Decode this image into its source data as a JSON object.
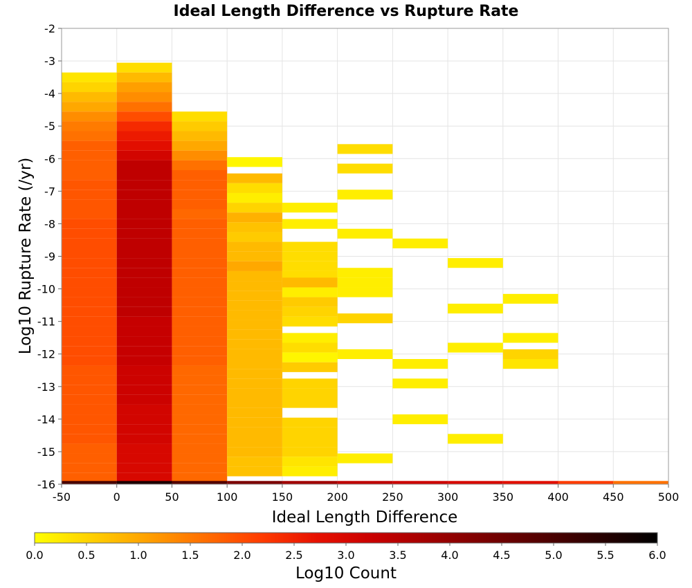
{
  "chart_data": {
    "type": "heatmap",
    "title": "Ideal Length Difference vs Rupture Rate",
    "xlabel": "Ideal Length Difference",
    "ylabel": "Log10 Rupture Rate (/yr)",
    "xlim": [
      -50,
      500
    ],
    "ylim": [
      -16,
      -2
    ],
    "xticks": [
      "-50",
      "0",
      "50",
      "100",
      "150",
      "200",
      "250",
      "300",
      "350",
      "400",
      "450",
      "500"
    ],
    "yticks": [
      "-2",
      "-3",
      "-4",
      "-5",
      "-6",
      "-7",
      "-8",
      "-9",
      "-10",
      "-11",
      "-12",
      "-13",
      "-14",
      "-15",
      "-16"
    ],
    "grid": true,
    "colorbar": {
      "label": "Log10 Count",
      "range": [
        0,
        6
      ],
      "ticks": [
        "0.0",
        "0.5",
        "1.0",
        "1.5",
        "2.0",
        "2.5",
        "3.0",
        "3.5",
        "4.0",
        "4.5",
        "5.0",
        "5.5",
        "6.0"
      ],
      "stops": [
        "#ffff00",
        "#ffd000",
        "#ffa000",
        "#ff6e00",
        "#ff3c00",
        "#e61000",
        "#c80000",
        "#a00000",
        "#780000",
        "#500000",
        "#280000",
        "#000000"
      ]
    },
    "cell_height": 0.29,
    "columns": [
      {
        "x0": -50,
        "x1": 0,
        "cells": [
          {
            "y": -3.5,
            "v": 0.3
          },
          {
            "y": -3.8,
            "v": 0.5
          },
          {
            "y": -4.1,
            "v": 0.8
          },
          {
            "y": -4.4,
            "v": 1.0
          },
          {
            "y": -4.7,
            "v": 1.3
          },
          {
            "y": -5.0,
            "v": 1.5
          },
          {
            "y": -5.3,
            "v": 1.6
          },
          {
            "y": -5.6,
            "v": 1.8
          },
          {
            "y": -5.9,
            "v": 1.8
          },
          {
            "y": -6.2,
            "v": 1.8
          },
          {
            "y": -6.5,
            "v": 1.8
          },
          {
            "y": -6.8,
            "v": 1.9
          },
          {
            "y": -7.1,
            "v": 1.9
          },
          {
            "y": -7.4,
            "v": 1.9
          },
          {
            "y": -7.7,
            "v": 1.9
          },
          {
            "y": -8.0,
            "v": 2.0
          },
          {
            "y": -8.3,
            "v": 2.0
          },
          {
            "y": -8.6,
            "v": 2.0
          },
          {
            "y": -8.9,
            "v": 2.0
          },
          {
            "y": -9.2,
            "v": 2.0
          },
          {
            "y": -9.5,
            "v": 2.0
          },
          {
            "y": -9.8,
            "v": 2.0
          },
          {
            "y": -10.1,
            "v": 2.0
          },
          {
            "y": -10.4,
            "v": 2.0
          },
          {
            "y": -10.7,
            "v": 2.0
          },
          {
            "y": -11.0,
            "v": 2.0
          },
          {
            "y": -11.3,
            "v": 2.0
          },
          {
            "y": -11.6,
            "v": 2.0
          },
          {
            "y": -11.9,
            "v": 2.0
          },
          {
            "y": -12.2,
            "v": 2.0
          },
          {
            "y": -12.5,
            "v": 1.9
          },
          {
            "y": -12.8,
            "v": 1.9
          },
          {
            "y": -13.1,
            "v": 1.9
          },
          {
            "y": -13.4,
            "v": 1.9
          },
          {
            "y": -13.7,
            "v": 1.9
          },
          {
            "y": -14.0,
            "v": 1.9
          },
          {
            "y": -14.3,
            "v": 1.9
          },
          {
            "y": -14.6,
            "v": 1.9
          },
          {
            "y": -14.9,
            "v": 1.8
          },
          {
            "y": -15.2,
            "v": 1.8
          },
          {
            "y": -15.5,
            "v": 1.8
          },
          {
            "y": -15.8,
            "v": 1.8
          }
        ]
      },
      {
        "x0": 0,
        "x1": 50,
        "cells": [
          {
            "y": -3.2,
            "v": 0.4
          },
          {
            "y": -3.5,
            "v": 0.8
          },
          {
            "y": -3.8,
            "v": 1.1
          },
          {
            "y": -4.1,
            "v": 1.3
          },
          {
            "y": -4.4,
            "v": 1.6
          },
          {
            "y": -4.7,
            "v": 2.0
          },
          {
            "y": -5.0,
            "v": 2.4
          },
          {
            "y": -5.3,
            "v": 2.6
          },
          {
            "y": -5.6,
            "v": 2.8
          },
          {
            "y": -5.9,
            "v": 3.1
          },
          {
            "y": -6.2,
            "v": 3.4
          },
          {
            "y": -6.5,
            "v": 3.4
          },
          {
            "y": -6.8,
            "v": 3.4
          },
          {
            "y": -7.1,
            "v": 3.4
          },
          {
            "y": -7.4,
            "v": 3.4
          },
          {
            "y": -7.7,
            "v": 3.4
          },
          {
            "y": -8.0,
            "v": 3.4
          },
          {
            "y": -8.3,
            "v": 3.4
          },
          {
            "y": -8.6,
            "v": 3.4
          },
          {
            "y": -8.9,
            "v": 3.4
          },
          {
            "y": -9.2,
            "v": 3.4
          },
          {
            "y": -9.5,
            "v": 3.4
          },
          {
            "y": -9.8,
            "v": 3.4
          },
          {
            "y": -10.1,
            "v": 3.4
          },
          {
            "y": -10.4,
            "v": 3.4
          },
          {
            "y": -10.7,
            "v": 3.4
          },
          {
            "y": -11.0,
            "v": 3.3
          },
          {
            "y": -11.3,
            "v": 3.3
          },
          {
            "y": -11.6,
            "v": 3.3
          },
          {
            "y": -11.9,
            "v": 3.3
          },
          {
            "y": -12.2,
            "v": 3.3
          },
          {
            "y": -12.5,
            "v": 3.2
          },
          {
            "y": -12.8,
            "v": 3.2
          },
          {
            "y": -13.1,
            "v": 3.2
          },
          {
            "y": -13.4,
            "v": 3.2
          },
          {
            "y": -13.7,
            "v": 3.1
          },
          {
            "y": -14.0,
            "v": 3.1
          },
          {
            "y": -14.3,
            "v": 3.1
          },
          {
            "y": -14.6,
            "v": 3.1
          },
          {
            "y": -14.9,
            "v": 3.0
          },
          {
            "y": -15.2,
            "v": 3.0
          },
          {
            "y": -15.5,
            "v": 3.0
          },
          {
            "y": -15.8,
            "v": 3.0
          }
        ]
      },
      {
        "x0": 50,
        "x1": 100,
        "cells": [
          {
            "y": -4.7,
            "v": 0.4
          },
          {
            "y": -5.0,
            "v": 0.6
          },
          {
            "y": -5.3,
            "v": 0.8
          },
          {
            "y": -5.6,
            "v": 1.0
          },
          {
            "y": -5.9,
            "v": 1.3
          },
          {
            "y": -6.2,
            "v": 1.6
          },
          {
            "y": -6.5,
            "v": 1.8
          },
          {
            "y": -6.8,
            "v": 1.8
          },
          {
            "y": -7.1,
            "v": 1.8
          },
          {
            "y": -7.4,
            "v": 1.8
          },
          {
            "y": -7.7,
            "v": 1.7
          },
          {
            "y": -8.0,
            "v": 1.8
          },
          {
            "y": -8.3,
            "v": 1.8
          },
          {
            "y": -8.6,
            "v": 1.8
          },
          {
            "y": -8.9,
            "v": 1.8
          },
          {
            "y": -9.2,
            "v": 1.8
          },
          {
            "y": -9.5,
            "v": 1.8
          },
          {
            "y": -9.8,
            "v": 1.8
          },
          {
            "y": -10.1,
            "v": 1.8
          },
          {
            "y": -10.4,
            "v": 1.8
          },
          {
            "y": -10.7,
            "v": 1.8
          },
          {
            "y": -11.0,
            "v": 1.8
          },
          {
            "y": -11.3,
            "v": 1.8
          },
          {
            "y": -11.6,
            "v": 1.8
          },
          {
            "y": -11.9,
            "v": 1.8
          },
          {
            "y": -12.2,
            "v": 1.8
          },
          {
            "y": -12.5,
            "v": 1.7
          },
          {
            "y": -12.8,
            "v": 1.7
          },
          {
            "y": -13.1,
            "v": 1.7
          },
          {
            "y": -13.4,
            "v": 1.7
          },
          {
            "y": -13.7,
            "v": 1.7
          },
          {
            "y": -14.0,
            "v": 1.7
          },
          {
            "y": -14.3,
            "v": 1.7
          },
          {
            "y": -14.6,
            "v": 1.7
          },
          {
            "y": -14.9,
            "v": 1.7
          },
          {
            "y": -15.2,
            "v": 1.7
          },
          {
            "y": -15.5,
            "v": 1.7
          },
          {
            "y": -15.8,
            "v": 1.7
          }
        ]
      },
      {
        "x0": 100,
        "x1": 150,
        "cells": [
          {
            "y": -6.1,
            "v": 0.1
          },
          {
            "y": -6.6,
            "v": 0.8
          },
          {
            "y": -6.9,
            "v": 0.4
          },
          {
            "y": -7.2,
            "v": 0.2
          },
          {
            "y": -7.5,
            "v": 0.5
          },
          {
            "y": -7.8,
            "v": 0.9
          },
          {
            "y": -8.1,
            "v": 0.7
          },
          {
            "y": -8.4,
            "v": 0.6
          },
          {
            "y": -8.7,
            "v": 0.8
          },
          {
            "y": -9.0,
            "v": 0.8
          },
          {
            "y": -9.3,
            "v": 1.0
          },
          {
            "y": -9.6,
            "v": 0.8
          },
          {
            "y": -9.9,
            "v": 0.8
          },
          {
            "y": -10.2,
            "v": 0.8
          },
          {
            "y": -10.5,
            "v": 0.8
          },
          {
            "y": -10.8,
            "v": 0.8
          },
          {
            "y": -11.1,
            "v": 0.8
          },
          {
            "y": -11.4,
            "v": 0.8
          },
          {
            "y": -11.7,
            "v": 0.8
          },
          {
            "y": -12.0,
            "v": 0.8
          },
          {
            "y": -12.3,
            "v": 0.8
          },
          {
            "y": -12.6,
            "v": 0.8
          },
          {
            "y": -12.9,
            "v": 0.8
          },
          {
            "y": -13.2,
            "v": 0.8
          },
          {
            "y": -13.5,
            "v": 0.8
          },
          {
            "y": -13.8,
            "v": 0.8
          },
          {
            "y": -14.1,
            "v": 0.8
          },
          {
            "y": -14.4,
            "v": 0.8
          },
          {
            "y": -14.7,
            "v": 0.8
          },
          {
            "y": -15.0,
            "v": 0.8
          },
          {
            "y": -15.3,
            "v": 0.7
          },
          {
            "y": -15.6,
            "v": 0.7
          }
        ]
      },
      {
        "x0": 150,
        "x1": 200,
        "cells": [
          {
            "y": -7.5,
            "v": 0.2
          },
          {
            "y": -8.0,
            "v": 0.2
          },
          {
            "y": -8.7,
            "v": 0.4
          },
          {
            "y": -9.0,
            "v": 0.4
          },
          {
            "y": -9.3,
            "v": 0.4
          },
          {
            "y": -9.6,
            "v": 0.4
          },
          {
            "y": -9.8,
            "v": 0.8
          },
          {
            "y": -10.1,
            "v": 0.2
          },
          {
            "y": -10.4,
            "v": 0.6
          },
          {
            "y": -10.7,
            "v": 0.5
          },
          {
            "y": -11.0,
            "v": 0.4
          },
          {
            "y": -11.5,
            "v": 0.2
          },
          {
            "y": -11.8,
            "v": 0.4
          },
          {
            "y": -12.1,
            "v": 0.1
          },
          {
            "y": -12.4,
            "v": 0.6
          },
          {
            "y": -12.9,
            "v": 0.5
          },
          {
            "y": -13.2,
            "v": 0.5
          },
          {
            "y": -13.5,
            "v": 0.5
          },
          {
            "y": -14.1,
            "v": 0.5
          },
          {
            "y": -14.4,
            "v": 0.5
          },
          {
            "y": -14.7,
            "v": 0.5
          },
          {
            "y": -15.0,
            "v": 0.5
          },
          {
            "y": -15.3,
            "v": 0.3
          },
          {
            "y": -15.6,
            "v": 0.2
          }
        ]
      },
      {
        "x0": 200,
        "x1": 250,
        "cells": [
          {
            "y": -5.7,
            "v": 0.4
          },
          {
            "y": -6.3,
            "v": 0.4
          },
          {
            "y": -7.1,
            "v": 0.2
          },
          {
            "y": -8.3,
            "v": 0.2
          },
          {
            "y": -9.5,
            "v": 0.2
          },
          {
            "y": -9.8,
            "v": 0.2
          },
          {
            "y": -10.1,
            "v": 0.2
          },
          {
            "y": -10.9,
            "v": 0.5
          },
          {
            "y": -12.0,
            "v": 0.2
          },
          {
            "y": -15.2,
            "v": 0.2
          }
        ]
      },
      {
        "x0": 250,
        "x1": 300,
        "cells": [
          {
            "y": -8.6,
            "v": 0.2
          },
          {
            "y": -12.3,
            "v": 0.2
          },
          {
            "y": -12.9,
            "v": 0.2
          },
          {
            "y": -14.0,
            "v": 0.2
          }
        ]
      },
      {
        "x0": 300,
        "x1": 350,
        "cells": [
          {
            "y": -9.2,
            "v": 0.2
          },
          {
            "y": -10.6,
            "v": 0.2
          },
          {
            "y": -11.8,
            "v": 0.2
          },
          {
            "y": -14.6,
            "v": 0.2
          }
        ]
      },
      {
        "x0": 350,
        "x1": 400,
        "cells": [
          {
            "y": -10.3,
            "v": 0.2
          },
          {
            "y": -11.5,
            "v": 0.2
          },
          {
            "y": -12.0,
            "v": 0.5
          },
          {
            "y": -12.3,
            "v": 0.3
          }
        ]
      }
    ],
    "bottom_row": {
      "y": -15.95,
      "cells": [
        {
          "x0": -50,
          "x1": 0,
          "v": 5.0
        },
        {
          "x0": 0,
          "x1": 50,
          "v": 5.6
        },
        {
          "x0": 50,
          "x1": 100,
          "v": 4.9
        },
        {
          "x0": 100,
          "x1": 150,
          "v": 4.3
        },
        {
          "x0": 150,
          "x1": 200,
          "v": 3.8
        },
        {
          "x0": 200,
          "x1": 250,
          "v": 3.4
        },
        {
          "x0": 250,
          "x1": 300,
          "v": 3.2
        },
        {
          "x0": 300,
          "x1": 350,
          "v": 3.0
        },
        {
          "x0": 350,
          "x1": 400,
          "v": 2.8
        },
        {
          "x0": 400,
          "x1": 450,
          "v": 2.2
        },
        {
          "x0": 450,
          "x1": 500,
          "v": 1.6
        }
      ]
    }
  }
}
